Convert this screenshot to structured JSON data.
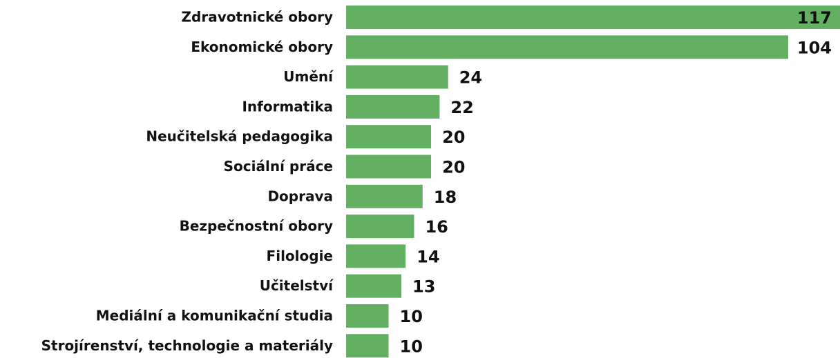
{
  "chart_data": {
    "type": "bar",
    "orientation": "horizontal",
    "color": "#63b063",
    "categories": [
      "Zdravotnické obory",
      "Ekonomické obory",
      "Umění",
      "Informatika",
      "Neučitelská pedagogika",
      "Sociální práce",
      "Doprava",
      "Bezpečnostní obory",
      "Filologie",
      "Učitelství",
      "Mediální a komunikační studia",
      "Strojírenství, technologie a materiály"
    ],
    "values": [
      117,
      104,
      24,
      22,
      20,
      20,
      18,
      16,
      14,
      13,
      10,
      10
    ]
  }
}
